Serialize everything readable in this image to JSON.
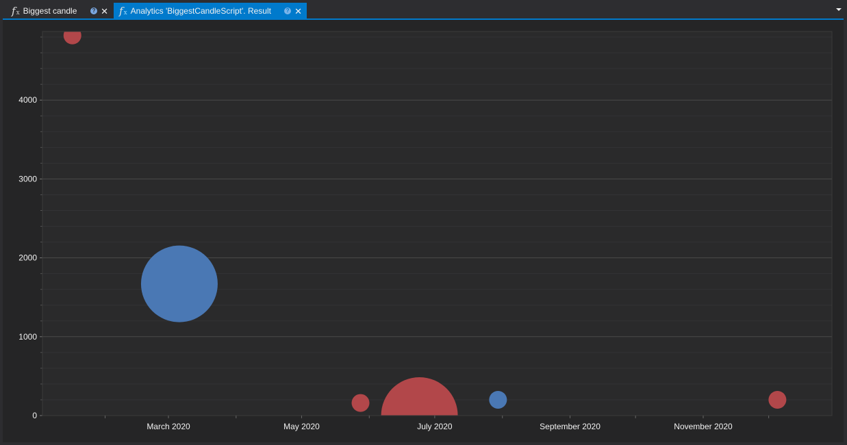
{
  "tabs": [
    {
      "label": "Biggest candle",
      "active": false
    },
    {
      "label": "Analytics 'BiggestCandleScript'. Result",
      "active": true
    }
  ],
  "colors": {
    "accent": "#007acc",
    "bubble_red": "#b2474a",
    "bubble_blue": "#4a78b4",
    "plot_bg": "#2a2a2b",
    "grid_major": "#4a4a4a",
    "grid_minor": "#333335"
  },
  "icons": {
    "tab_icon": "fx-icon",
    "help": "help-icon",
    "close": "close-icon",
    "menu": "dropdown-icon"
  },
  "chart_data": {
    "type": "scatter",
    "y_ticks": [
      "0",
      "1000",
      "2000",
      "3000",
      "4000"
    ],
    "x_ticks": [
      "March 2020",
      "May 2020",
      "July 2020",
      "September 2020",
      "November 2020"
    ],
    "ylim": [
      0,
      4870
    ],
    "grid": true,
    "points": [
      {
        "x": "2020-01-17",
        "y": 4820,
        "size": "small",
        "color": "red"
      },
      {
        "x": "2020-03-06",
        "y": 1670,
        "size": "large",
        "color": "blue"
      },
      {
        "x": "2020-05-28",
        "y": 160,
        "size": "small",
        "color": "red"
      },
      {
        "x": "2020-06-24",
        "y": 0,
        "size": "large",
        "color": "red"
      },
      {
        "x": "2020-07-30",
        "y": 200,
        "size": "small",
        "color": "blue"
      },
      {
        "x": "2020-12-05",
        "y": 200,
        "size": "small",
        "color": "red"
      }
    ]
  }
}
